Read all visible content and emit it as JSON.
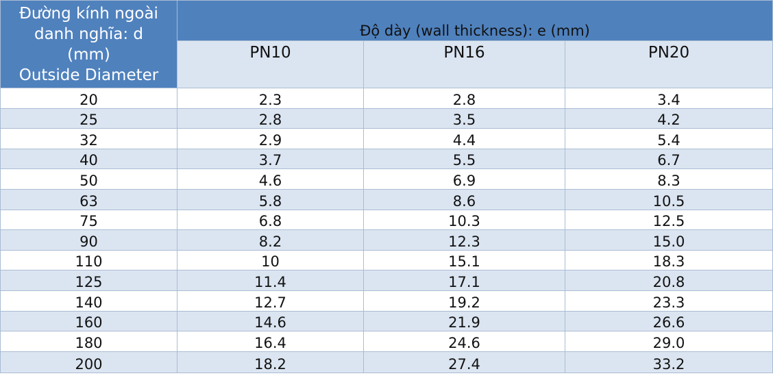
{
  "header": {
    "diameter_label_lines": [
      "Đường kính ngoài",
      "danh nghĩa: d",
      "(mm)",
      "Outside Diameter"
    ],
    "thickness_label": "Độ dày (wall thickness): e (mm)",
    "pressure_classes": [
      "PN10",
      "PN16",
      "PN20"
    ]
  },
  "rows": [
    {
      "d": "20",
      "pn10": "2.3",
      "pn16": "2.8",
      "pn20": "3.4"
    },
    {
      "d": "25",
      "pn10": "2.8",
      "pn16": "3.5",
      "pn20": "4.2"
    },
    {
      "d": "32",
      "pn10": "2.9",
      "pn16": "4.4",
      "pn20": "5.4"
    },
    {
      "d": "40",
      "pn10": "3.7",
      "pn16": "5.5",
      "pn20": "6.7"
    },
    {
      "d": "50",
      "pn10": "4.6",
      "pn16": "6.9",
      "pn20": "8.3"
    },
    {
      "d": "63",
      "pn10": "5.8",
      "pn16": "8.6",
      "pn20": "10.5"
    },
    {
      "d": "75",
      "pn10": "6.8",
      "pn16": "10.3",
      "pn20": "12.5"
    },
    {
      "d": "90",
      "pn10": "8.2",
      "pn16": "12.3",
      "pn20": "15.0"
    },
    {
      "d": "110",
      "pn10": "10",
      "pn16": "15.1",
      "pn20": "18.3"
    },
    {
      "d": "125",
      "pn10": "11.4",
      "pn16": "17.1",
      "pn20": "20.8"
    },
    {
      "d": "140",
      "pn10": "12.7",
      "pn16": "19.2",
      "pn20": "23.3"
    },
    {
      "d": "160",
      "pn10": "14.6",
      "pn16": "21.9",
      "pn20": "26.6"
    },
    {
      "d": "180",
      "pn10": "16.4",
      "pn16": "24.6",
      "pn20": "29.0"
    },
    {
      "d": "200",
      "pn10": "18.2",
      "pn16": "27.4",
      "pn20": "33.2"
    }
  ],
  "colors": {
    "header_blue": "#4f81bd",
    "band_light": "#dbe5f1",
    "border": "#a9bcd3"
  }
}
